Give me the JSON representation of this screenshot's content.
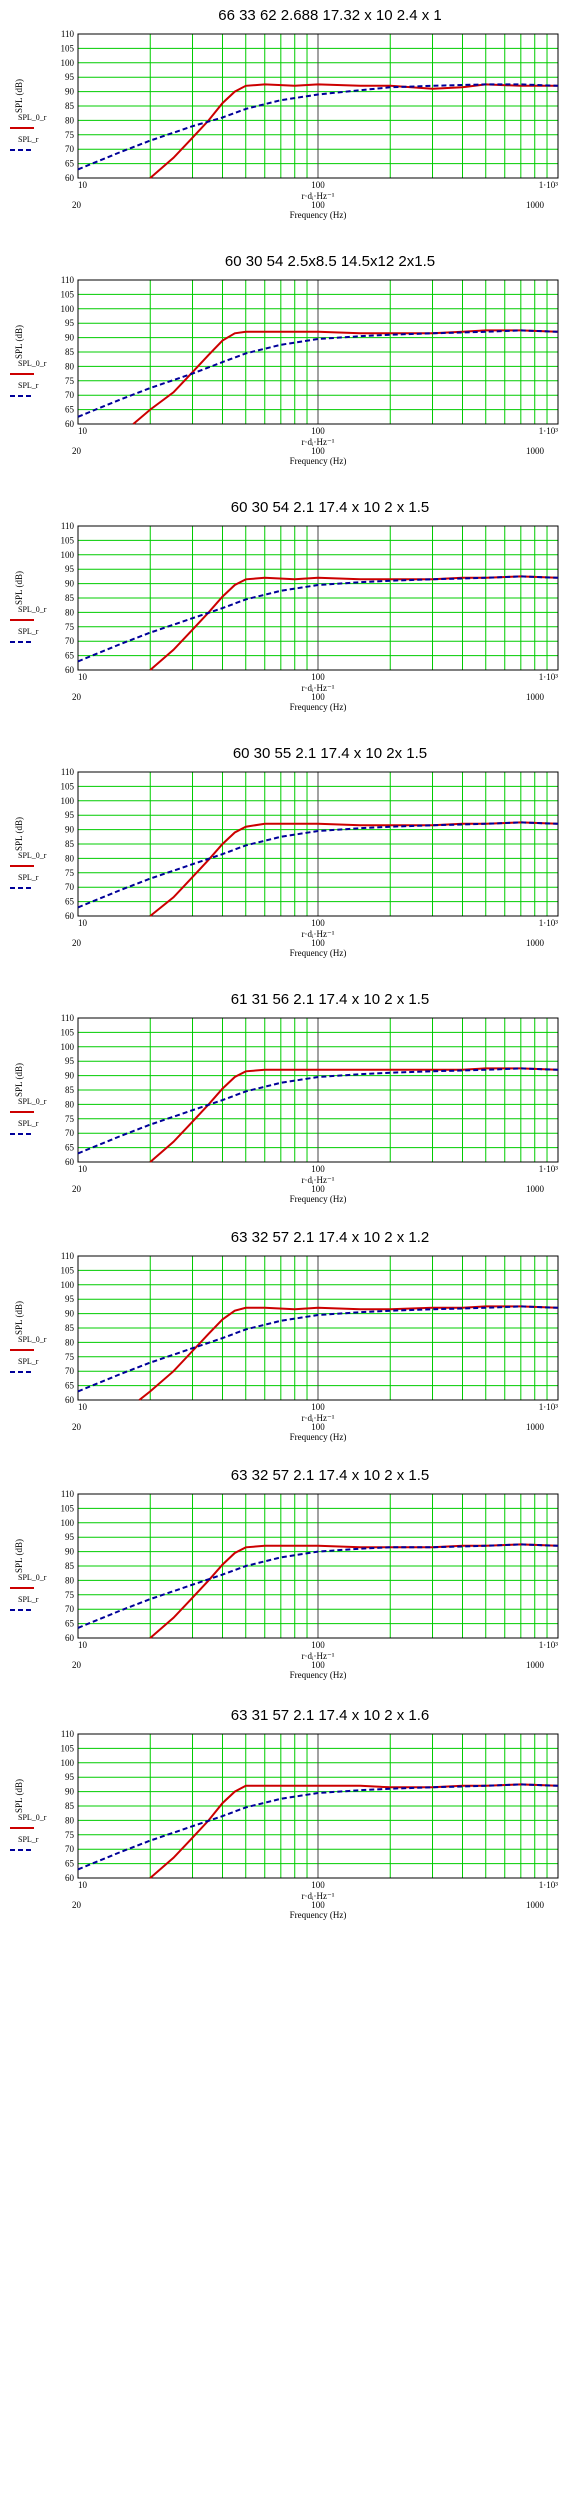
{
  "chart_data": [
    {
      "type": "line",
      "title": "66  33  62      2.688  17.32 x 10   2.4 x 1",
      "ylabel": "SPL (dB)",
      "xlabel_top": "r·dᵢ·Hz⁻¹",
      "xlabel": "Frequency (Hz)",
      "legend": [
        "SPL_0_r",
        "SPL_r"
      ],
      "x_scale": "log",
      "xlim": [
        10,
        1000
      ],
      "ylim": [
        60,
        110
      ],
      "yticks": [
        60,
        65,
        70,
        75,
        80,
        85,
        90,
        95,
        100,
        105,
        110
      ],
      "xticks_top": [
        "10",
        "100",
        "1·10³"
      ],
      "xticks_bottom": [
        "20",
        "100",
        "1000"
      ],
      "colors": {
        "series_1": "#cc0000",
        "series_2": "#000099",
        "grid": "#00cc00"
      },
      "series": [
        {
          "x": [
            20,
            25,
            30,
            35,
            40,
            45,
            50,
            60,
            80,
            100,
            150,
            200,
            300,
            400,
            500,
            700,
            1000
          ],
          "y": [
            60,
            67,
            74,
            80,
            86,
            90,
            92,
            92.5,
            92,
            92.5,
            92,
            92,
            91,
            91.5,
            92.5,
            92,
            92
          ]
        },
        {
          "x": [
            10,
            15,
            20,
            30,
            40,
            50,
            70,
            100,
            150,
            200,
            300,
            500,
            700,
            1000
          ],
          "y": [
            63,
            69,
            73,
            78,
            81,
            84,
            87,
            89,
            90.5,
            91.5,
            92,
            92.5,
            92.5,
            92
          ]
        }
      ]
    },
    {
      "type": "line",
      "title": "60  30  54   2.5x8.5   14.5x12   2x1.5",
      "ylabel": "SPL (dB)",
      "xlabel_top": "r·dᵢ·Hz⁻¹",
      "xlabel": "Frequency (Hz)",
      "legend": [
        "SPL_0_r",
        "SPL_r"
      ],
      "x_scale": "log",
      "xlim": [
        10,
        1000
      ],
      "ylim": [
        60,
        110
      ],
      "yticks": [
        60,
        65,
        70,
        75,
        80,
        85,
        90,
        95,
        100,
        105,
        110
      ],
      "xticks_top": [
        "10",
        "100",
        "1·10³"
      ],
      "xticks_bottom": [
        "20",
        "100",
        "1000"
      ],
      "colors": {
        "series_1": "#cc0000",
        "series_2": "#000099",
        "grid": "#00cc00"
      },
      "series": [
        {
          "x": [
            17,
            20,
            25,
            30,
            35,
            40,
            45,
            50,
            60,
            80,
            100,
            150,
            200,
            300,
            400,
            500,
            700,
            1000
          ],
          "y": [
            60,
            65,
            71,
            78,
            84,
            89,
            91.5,
            92,
            92,
            92,
            92,
            91.5,
            91.5,
            91.5,
            92,
            92.5,
            92.5,
            92
          ]
        },
        {
          "x": [
            10,
            15,
            20,
            30,
            40,
            50,
            70,
            100,
            150,
            200,
            300,
            500,
            700,
            1000
          ],
          "y": [
            62.5,
            68.5,
            72.5,
            77.5,
            81.5,
            84.5,
            87.5,
            89.5,
            90.5,
            91,
            91.5,
            92,
            92.5,
            92
          ]
        }
      ]
    },
    {
      "type": "line",
      "title": "60  30  54  2.1  17.4 x 10   2 x 1.5",
      "ylabel": "SPL (dB)",
      "xlabel_top": "r·dᵢ·Hz⁻¹",
      "xlabel": "Frequency (Hz)",
      "legend": [
        "SPL_0_r",
        "SPL_r"
      ],
      "x_scale": "log",
      "xlim": [
        10,
        1000
      ],
      "ylim": [
        60,
        110
      ],
      "yticks": [
        60,
        65,
        70,
        75,
        80,
        85,
        90,
        95,
        100,
        105,
        110
      ],
      "xticks_top": [
        "10",
        "100",
        "1·10³"
      ],
      "xticks_bottom": [
        "20",
        "100",
        "1000"
      ],
      "colors": {
        "series_1": "#cc0000",
        "series_2": "#000099",
        "grid": "#00cc00"
      },
      "series": [
        {
          "x": [
            20,
            25,
            30,
            35,
            40,
            45,
            50,
            60,
            80,
            100,
            150,
            200,
            300,
            400,
            500,
            700,
            1000
          ],
          "y": [
            60,
            67,
            74,
            80,
            85.5,
            89.5,
            91.5,
            92,
            91.5,
            92,
            91.5,
            91.5,
            91.5,
            92,
            92,
            92.5,
            92
          ]
        },
        {
          "x": [
            10,
            15,
            20,
            30,
            40,
            50,
            70,
            100,
            150,
            200,
            300,
            500,
            700,
            1000
          ],
          "y": [
            63,
            69,
            73,
            78,
            81.5,
            84.5,
            87.5,
            89.5,
            90.5,
            91,
            91.5,
            92,
            92.5,
            92
          ]
        }
      ]
    },
    {
      "type": "line",
      "title": "60  30  55   2.1  17.4 x 10    2x 1.5",
      "ylabel": "SPL (dB)",
      "xlabel_top": "r·dᵢ·Hz⁻¹",
      "xlabel": "Frequency (Hz)",
      "legend": [
        "SPL_0_r",
        "SPL_r"
      ],
      "x_scale": "log",
      "xlim": [
        10,
        1000
      ],
      "ylim": [
        60,
        110
      ],
      "yticks": [
        60,
        65,
        70,
        75,
        80,
        85,
        90,
        95,
        100,
        105,
        110
      ],
      "xticks_top": [
        "10",
        "100",
        "1·10³"
      ],
      "xticks_bottom": [
        "20",
        "100",
        "1000"
      ],
      "colors": {
        "series_1": "#cc0000",
        "series_2": "#000099",
        "grid": "#00cc00"
      },
      "series": [
        {
          "x": [
            20,
            25,
            30,
            35,
            40,
            45,
            50,
            60,
            80,
            100,
            150,
            200,
            300,
            400,
            500,
            700,
            1000
          ],
          "y": [
            60,
            66.5,
            73.5,
            79.5,
            85,
            89,
            91,
            92,
            92,
            92,
            91.5,
            91.5,
            91.5,
            92,
            92,
            92.5,
            92
          ]
        },
        {
          "x": [
            10,
            15,
            20,
            30,
            40,
            50,
            70,
            100,
            150,
            200,
            300,
            500,
            700,
            1000
          ],
          "y": [
            63,
            69,
            73,
            78,
            81.5,
            84.5,
            87.5,
            89.5,
            90.5,
            91,
            91.5,
            92,
            92.5,
            92
          ]
        }
      ]
    },
    {
      "type": "line",
      "title": "61  31  56   2.1   17.4 x 10    2 x 1.5",
      "ylabel": "SPL (dB)",
      "xlabel_top": "r·dᵢ·Hz⁻¹",
      "xlabel": "Frequency (Hz)",
      "legend": [
        "SPL_0_r",
        "SPL_r"
      ],
      "x_scale": "log",
      "xlim": [
        10,
        1000
      ],
      "ylim": [
        60,
        110
      ],
      "yticks": [
        60,
        65,
        70,
        75,
        80,
        85,
        90,
        95,
        100,
        105,
        110
      ],
      "xticks_top": [
        "10",
        "100",
        "1·10³"
      ],
      "xticks_bottom": [
        "20",
        "100",
        "1000"
      ],
      "colors": {
        "series_1": "#cc0000",
        "series_2": "#000099",
        "grid": "#00cc00"
      },
      "series": [
        {
          "x": [
            20,
            25,
            30,
            35,
            40,
            45,
            50,
            60,
            80,
            100,
            150,
            200,
            300,
            400,
            500,
            700,
            1000
          ],
          "y": [
            60,
            67,
            74,
            80,
            85.5,
            89.5,
            91.5,
            92,
            92,
            92,
            92,
            92,
            92,
            92,
            92.5,
            92.5,
            92
          ]
        },
        {
          "x": [
            10,
            15,
            20,
            30,
            40,
            50,
            70,
            100,
            150,
            200,
            300,
            500,
            700,
            1000
          ],
          "y": [
            63,
            69,
            73,
            78,
            81.5,
            84.5,
            87.5,
            89.5,
            90.5,
            91,
            91.5,
            92,
            92.5,
            92
          ]
        }
      ]
    },
    {
      "type": "line",
      "title": "63   32   57   2.1  17.4 x 10    2 x 1.2",
      "ylabel": "SPL (dB)",
      "xlabel_top": "r·dᵢ·Hz⁻¹",
      "xlabel": "Frequency (Hz)",
      "legend": [
        "SPL_0_r",
        "SPL_r"
      ],
      "x_scale": "log",
      "xlim": [
        10,
        1000
      ],
      "ylim": [
        60,
        110
      ],
      "yticks": [
        60,
        65,
        70,
        75,
        80,
        85,
        90,
        95,
        100,
        105,
        110
      ],
      "xticks_top": [
        "10",
        "100",
        "1·10³"
      ],
      "xticks_bottom": [
        "20",
        "100",
        "1000"
      ],
      "colors": {
        "series_1": "#cc0000",
        "series_2": "#000099",
        "grid": "#00cc00"
      },
      "series": [
        {
          "x": [
            18,
            20,
            25,
            30,
            35,
            40,
            45,
            50,
            60,
            80,
            100,
            150,
            200,
            300,
            400,
            500,
            700,
            1000
          ],
          "y": [
            60,
            63,
            70,
            77,
            83,
            88,
            91,
            92,
            92,
            91.5,
            92,
            91.5,
            91.5,
            92,
            92,
            92.5,
            92.5,
            92
          ]
        },
        {
          "x": [
            10,
            15,
            20,
            30,
            40,
            50,
            70,
            100,
            150,
            200,
            300,
            500,
            700,
            1000
          ],
          "y": [
            63,
            69,
            73,
            78,
            81.5,
            84.5,
            87.5,
            89.5,
            90.5,
            91,
            91.5,
            92,
            92.5,
            92
          ]
        }
      ]
    },
    {
      "type": "line",
      "title": "63   32   57   2.1  17.4 x 10    2 x 1.5",
      "ylabel": "SPL (dB)",
      "xlabel_top": "r·dᵢ·Hz⁻¹",
      "xlabel": "Frequency (Hz)",
      "legend": [
        "SPL_0_r",
        "SPL_r"
      ],
      "x_scale": "log",
      "xlim": [
        10,
        1000
      ],
      "ylim": [
        60,
        110
      ],
      "yticks": [
        60,
        65,
        70,
        75,
        80,
        85,
        90,
        95,
        100,
        105,
        110
      ],
      "xticks_top": [
        "10",
        "100",
        "1·10³"
      ],
      "xticks_bottom": [
        "20",
        "100",
        "1000"
      ],
      "colors": {
        "series_1": "#cc0000",
        "series_2": "#000099",
        "grid": "#00cc00"
      },
      "series": [
        {
          "x": [
            20,
            25,
            30,
            35,
            40,
            45,
            50,
            60,
            80,
            100,
            150,
            200,
            300,
            400,
            500,
            700,
            1000
          ],
          "y": [
            60,
            67,
            74,
            80,
            85.5,
            89.5,
            91.5,
            92,
            92,
            92,
            91.5,
            91.5,
            91.5,
            92,
            92,
            92.5,
            92
          ]
        },
        {
          "x": [
            10,
            15,
            20,
            30,
            40,
            50,
            70,
            100,
            150,
            200,
            300,
            500,
            700,
            1000
          ],
          "y": [
            63.5,
            69.5,
            73.5,
            78.5,
            82,
            85,
            88,
            90,
            91,
            91.5,
            91.5,
            92,
            92.5,
            92
          ]
        }
      ]
    },
    {
      "type": "line",
      "title": "63   31   57   2.1  17.4 x 10    2 x 1.6",
      "ylabel": "SPL (dB)",
      "xlabel_top": "r·dᵢ·Hz⁻¹",
      "xlabel": "Frequency (Hz)",
      "legend": [
        "SPL_0_r",
        "SPL_r"
      ],
      "x_scale": "log",
      "xlim": [
        10,
        1000
      ],
      "ylim": [
        60,
        110
      ],
      "yticks": [
        60,
        65,
        70,
        75,
        80,
        85,
        90,
        95,
        100,
        105,
        110
      ],
      "xticks_top": [
        "10",
        "100",
        "1·10³"
      ],
      "xticks_bottom": [
        "20",
        "100",
        "1000"
      ],
      "colors": {
        "series_1": "#cc0000",
        "series_2": "#000099",
        "grid": "#00cc00"
      },
      "series": [
        {
          "x": [
            20,
            25,
            30,
            35,
            40,
            45,
            50,
            60,
            80,
            100,
            150,
            200,
            300,
            400,
            500,
            700,
            1000
          ],
          "y": [
            60,
            67,
            74,
            80,
            86,
            90,
            92,
            92,
            92,
            92,
            92,
            91.5,
            91.5,
            92,
            92,
            92.5,
            92
          ]
        },
        {
          "x": [
            10,
            15,
            20,
            30,
            40,
            50,
            70,
            100,
            150,
            200,
            300,
            500,
            700,
            1000
          ],
          "y": [
            63,
            69,
            73,
            78,
            81.5,
            84.5,
            87.5,
            89.5,
            90.5,
            91,
            91.5,
            92,
            92.5,
            92
          ]
        }
      ]
    }
  ]
}
